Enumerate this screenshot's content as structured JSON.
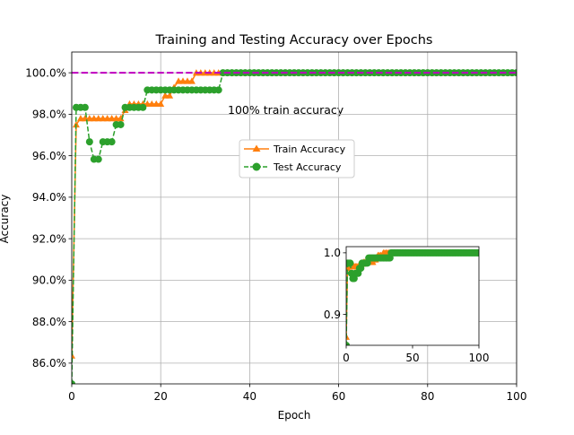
{
  "chart_data": [
    {
      "type": "line",
      "title": "Training and Testing Accuracy over Epochs",
      "xlabel": "Epoch",
      "ylabel": "Accuracy",
      "xlim": [
        0,
        100
      ],
      "ylim": [
        0.85,
        1.01
      ],
      "x_ticks": [
        0,
        20,
        40,
        60,
        80,
        100
      ],
      "x_tick_labels": [
        "0",
        "20",
        "40",
        "60",
        "80",
        "100"
      ],
      "y_ticks": [
        0.86,
        0.88,
        0.9,
        0.92,
        0.94,
        0.96,
        0.98,
        1.0
      ],
      "y_tick_labels": [
        "86.0%",
        "88.0%",
        "90.0%",
        "92.0%",
        "94.0%",
        "96.0%",
        "98.0%",
        "100.0%"
      ],
      "grid": true,
      "legend_position": "center-right",
      "x": [
        0,
        1,
        2,
        3,
        4,
        5,
        6,
        7,
        8,
        9,
        10,
        11,
        12,
        13,
        14,
        15,
        16,
        17,
        18,
        19,
        20,
        21,
        22,
        23,
        24,
        25,
        26,
        27,
        28,
        29,
        30,
        31,
        32,
        33,
        34,
        35,
        36,
        37,
        38,
        39,
        40,
        41,
        42,
        43,
        44,
        45,
        46,
        47,
        48,
        49,
        50,
        51,
        52,
        53,
        54,
        55,
        56,
        57,
        58,
        59,
        60,
        61,
        62,
        63,
        64,
        65,
        66,
        67,
        68,
        69,
        70,
        71,
        72,
        73,
        74,
        75,
        76,
        77,
        78,
        79,
        80,
        81,
        82,
        83,
        84,
        85,
        86,
        87,
        88,
        89,
        90,
        91,
        92,
        93,
        94,
        95,
        96,
        97,
        98,
        99,
        100
      ],
      "series": [
        {
          "name": "Train Accuracy",
          "color": "#ff7f0e",
          "marker": "triangle",
          "linestyle": "solid",
          "values": [
            0.8636,
            0.975,
            0.978,
            0.978,
            0.978,
            0.978,
            0.978,
            0.978,
            0.978,
            0.978,
            0.978,
            0.978,
            0.982,
            0.985,
            0.985,
            0.985,
            0.985,
            0.985,
            0.985,
            0.985,
            0.985,
            0.989,
            0.989,
            0.993,
            0.996,
            0.996,
            0.996,
            0.996,
            1.0,
            1.0,
            1.0,
            1.0,
            1.0,
            1.0,
            1.0,
            1.0,
            1.0,
            1.0,
            1.0,
            1.0,
            1.0,
            1.0,
            1.0,
            1.0,
            1.0,
            1.0,
            1.0,
            1.0,
            1.0,
            1.0,
            1.0,
            1.0,
            1.0,
            1.0,
            1.0,
            1.0,
            1.0,
            1.0,
            1.0,
            1.0,
            1.0,
            1.0,
            1.0,
            1.0,
            1.0,
            1.0,
            1.0,
            1.0,
            1.0,
            1.0,
            1.0,
            1.0,
            1.0,
            1.0,
            1.0,
            1.0,
            1.0,
            1.0,
            1.0,
            1.0,
            1.0,
            1.0,
            1.0,
            1.0,
            1.0,
            1.0,
            1.0,
            1.0,
            1.0,
            1.0,
            1.0,
            1.0,
            1.0,
            1.0,
            1.0,
            1.0,
            1.0,
            1.0,
            1.0,
            1.0,
            1.0
          ]
        },
        {
          "name": "Test Accuracy",
          "color": "#2ca02c",
          "marker": "circle",
          "linestyle": "dashed",
          "values": [
            0.85,
            0.9833,
            0.9833,
            0.9833,
            0.9667,
            0.9583,
            0.9583,
            0.9667,
            0.9667,
            0.9667,
            0.975,
            0.975,
            0.9833,
            0.9833,
            0.9833,
            0.9833,
            0.9833,
            0.9917,
            0.9917,
            0.9917,
            0.9917,
            0.9917,
            0.9917,
            0.9917,
            0.9917,
            0.9917,
            0.9917,
            0.9917,
            0.9917,
            0.9917,
            0.9917,
            0.9917,
            0.9917,
            0.9917,
            1.0,
            1.0,
            1.0,
            1.0,
            1.0,
            1.0,
            1.0,
            1.0,
            1.0,
            1.0,
            1.0,
            1.0,
            1.0,
            1.0,
            1.0,
            1.0,
            1.0,
            1.0,
            1.0,
            1.0,
            1.0,
            1.0,
            1.0,
            1.0,
            1.0,
            1.0,
            1.0,
            1.0,
            1.0,
            1.0,
            1.0,
            1.0,
            1.0,
            1.0,
            1.0,
            1.0,
            1.0,
            1.0,
            1.0,
            1.0,
            1.0,
            1.0,
            1.0,
            1.0,
            1.0,
            1.0,
            1.0,
            1.0,
            1.0,
            1.0,
            1.0,
            1.0,
            1.0,
            1.0,
            1.0,
            1.0,
            1.0,
            1.0,
            1.0,
            1.0,
            1.0,
            1.0,
            1.0,
            1.0,
            1.0,
            1.0,
            1.0
          ]
        }
      ],
      "reference_line": {
        "y": 1.0,
        "color": "#bf00bf",
        "linestyle": "dashed"
      },
      "annotation": {
        "text": "100% train accuracy",
        "x": 35,
        "y": 0.981,
        "color": "#bf00bf"
      }
    },
    {
      "type": "line",
      "inset": true,
      "xlim": [
        0,
        100
      ],
      "ylim": [
        0.85,
        1.01
      ],
      "x_ticks": [
        0,
        50,
        100
      ],
      "x_tick_labels": [
        "0",
        "50",
        "100"
      ],
      "y_ticks": [
        0.9,
        1.0
      ],
      "y_tick_labels": [
        "0.9",
        "1.0"
      ],
      "grid": false,
      "series_ref": "same as main chart"
    }
  ]
}
